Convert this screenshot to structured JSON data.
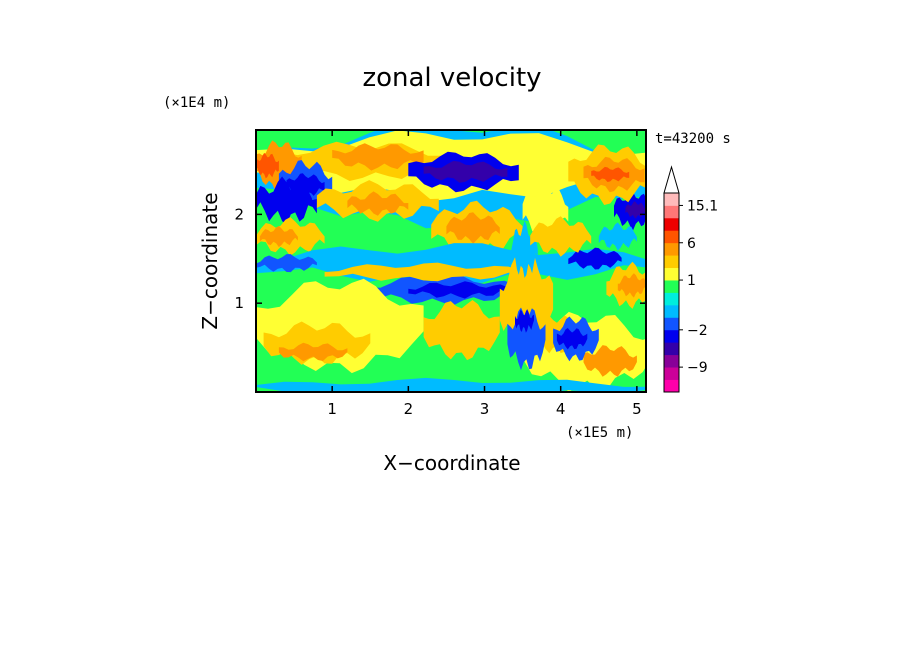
{
  "chart_data": {
    "type": "heatmap",
    "title": "zonal velocity",
    "xlabel": "X−coordinate",
    "ylabel": "Z−coordinate",
    "x_unit": "(×1E5 m)",
    "y_unit": "(×1E4 m)",
    "time_label": "t=43200 s",
    "xlim": [
      0,
      5.12
    ],
    "ylim": [
      0,
      2.95
    ],
    "x_ticks": [
      1,
      2,
      3,
      4,
      5
    ],
    "x_tick_labels": [
      "1",
      "2",
      "3",
      "4",
      "5"
    ],
    "y_ticks": [
      1,
      2
    ],
    "y_tick_labels": [
      "1",
      "2"
    ],
    "colorbar": {
      "levels": [
        -13.5,
        -10.5,
        -9,
        -6,
        -4,
        -2,
        -1,
        0,
        0.5,
        1,
        2,
        4,
        6,
        9,
        12,
        15.1
      ],
      "colors": [
        "#ff00aa",
        "#cc0099",
        "#880099",
        "#3300aa",
        "#0000ee",
        "#1155ff",
        "#00bbff",
        "#00eedd",
        "#22ff55",
        "#ffff33",
        "#ffcc00",
        "#ff9900",
        "#ff5500",
        "#ee0000",
        "#ff7777",
        "#ffbbbb"
      ],
      "tick_values": [
        15.1,
        6,
        1,
        -2,
        -9
      ],
      "tick_labels": [
        "15.1",
        "6",
        "1",
        "−2",
        "−9"
      ],
      "extend": "max"
    }
  }
}
